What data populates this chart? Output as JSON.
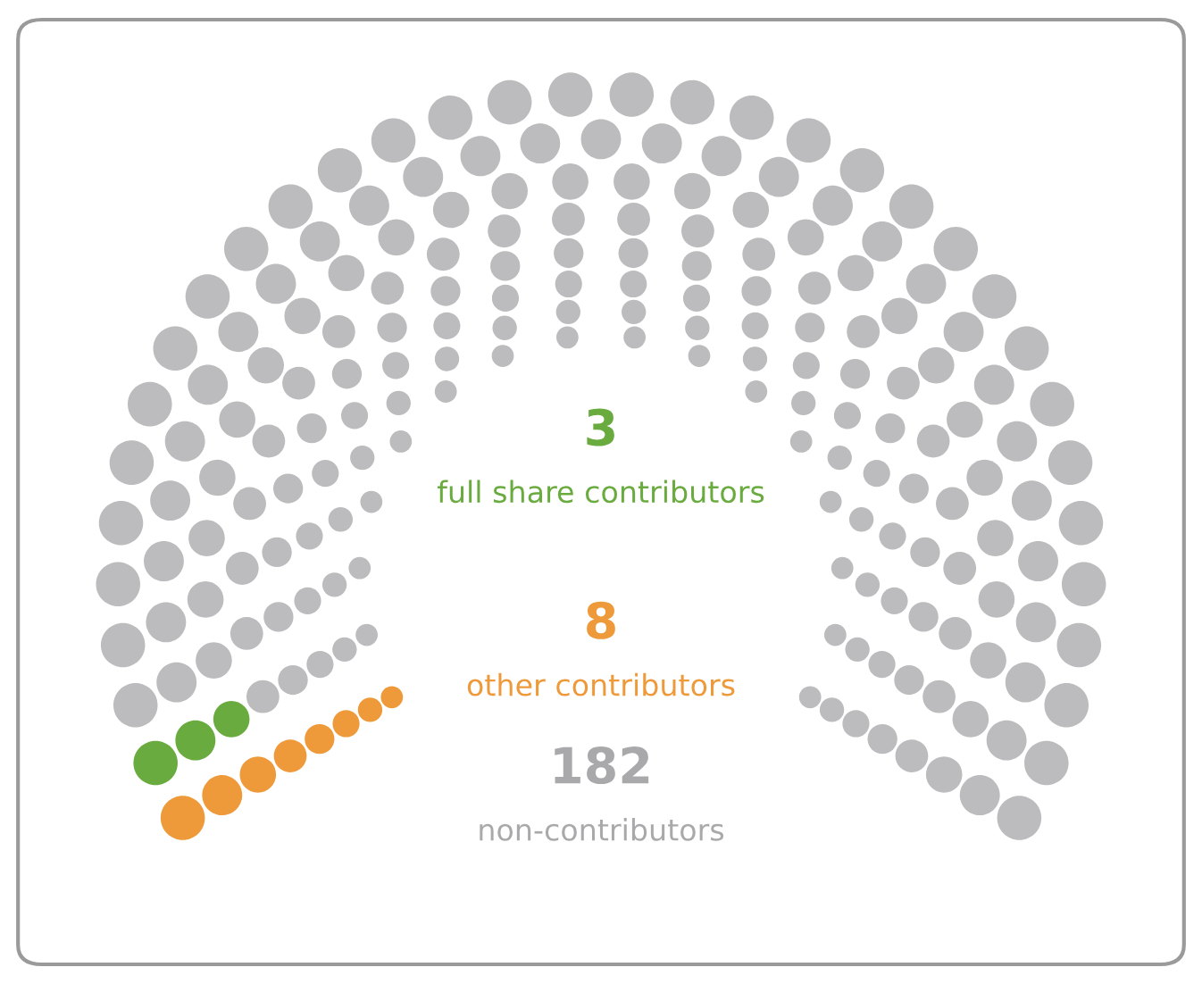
{
  "chart_data": {
    "type": "other",
    "categories": [
      "full share contributors",
      "other contributors",
      "non-contributors"
    ],
    "values": [
      3,
      8,
      182
    ],
    "colors": [
      "#6aab3f",
      "#ee9a3b",
      "#bcbcbe"
    ],
    "data_labels": true
  }
}
